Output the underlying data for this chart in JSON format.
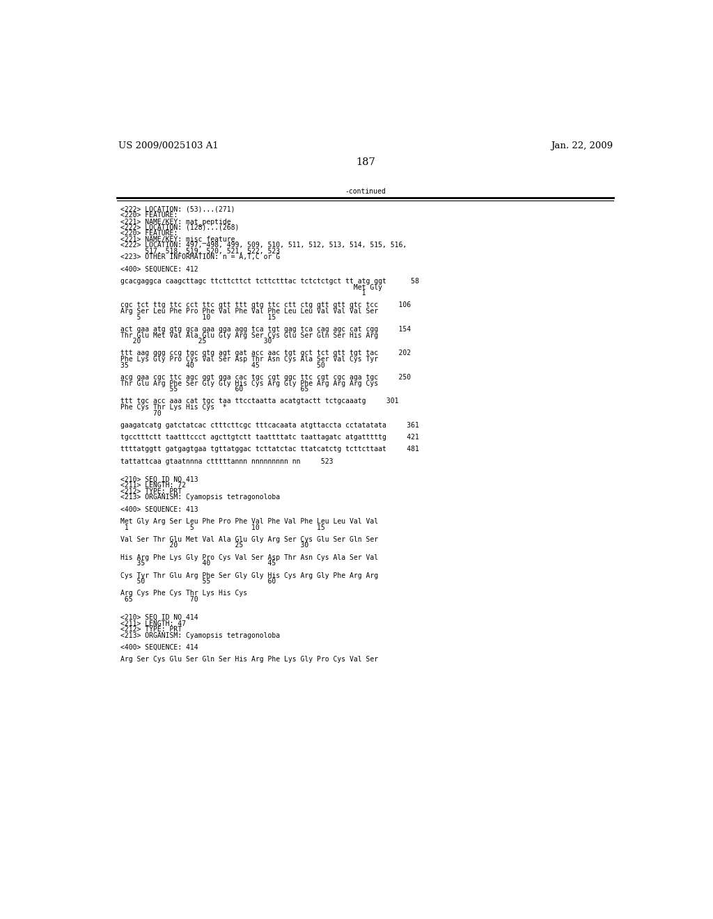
{
  "bg_color": "#ffffff",
  "top_left_text": "US 2009/0025103 A1",
  "top_right_text": "Jan. 22, 2009",
  "page_number": "187",
  "continued_text": "-continued",
  "font_size_header": 9.5,
  "font_size_mono": 7.0,
  "content_lines": [
    "<222> LOCATION: (53)...(271)",
    "<220> FEATURE:",
    "<221> NAME/KEY: mat_peptide",
    "<222> LOCATION: (128)...(268)",
    "<220> FEATURE:",
    "<221> NAME/KEY: misc_feature",
    "<222> LOCATION: 497, 498, 499, 509, 510, 511, 512, 513, 514, 515, 516,",
    "      517, 518, 519, 520, 521, 522, 523",
    "<223> OTHER INFORMATION: n = A,T,C or G",
    "",
    "<400> SEQUENCE: 412",
    "",
    "gcacgaggca caagcttagc ttcttcttct tcttctttac tctctctgct tt atg ggt      58",
    "                                                         Met Gly",
    "                                                           1",
    "",
    "cgc tct ttg ttc cct ttc gtt ttt gtg ttc ctt ctg gtt gtt gtc tcc     106",
    "Arg Ser Leu Phe Pro Phe Val Phe Val Phe Leu Leu Val Val Val Ser",
    "    5               10              15",
    "",
    "act gaa atg gtg gca gaa gga agg tca tgt gag tca cag agc cat cgg     154",
    "Thr Glu Met Val Ala Glu Gly Arg Ser Cys Glu Ser Gln Ser His Arg",
    "   20              25              30",
    "",
    "ttt aag ggg ccg tgc gtg agt gat acc aac tgt gct tct gtt tgt tac     202",
    "Phe Lys Gly Pro Cys Val Ser Asp Thr Asn Cys Ala Ser Val Cys Tyr",
    "35              40              45              50",
    "",
    "acg gaa cgc ttc agc ggt gga cac tgc cgt ggc ttc cgt cgc aga tgc     250",
    "Thr Glu Arg Phe Ser Gly Gly His Cys Arg Gly Phe Arg Arg Arg Cys",
    "            55              60              65",
    "",
    "ttt tgc acc aaa cat tgc taa ttcctaatta acatgtactt tctgcaaatg     301",
    "Phe Cys Thr Lys His Cys  *",
    "        70",
    "",
    "gaagatcatg gatctatcac ctttcttcgc tttcacaata atgttaccta cctatatata     361",
    "",
    "tgcctttctt taatttccct agcttgtctt taattttatc taattagatc atgatttttg     421",
    "",
    "ttttatggtt gatgagtgaa tgttatggac tcttatctac ttatcatctg tcttcttaat     481",
    "",
    "tattattcaa gtaatnnna ctttttannn nnnnnnnnn nn     523",
    "",
    "",
    "<210> SEQ ID NO 413",
    "<211> LENGTH: 72",
    "<212> TYPE: PRT",
    "<213> ORGANISM: Cyamopsis tetragonoloba",
    "",
    "<400> SEQUENCE: 413",
    "",
    "Met Gly Arg Ser Leu Phe Pro Phe Val Phe Val Phe Leu Leu Val Val",
    " 1               5              10              15",
    "",
    "Val Ser Thr Glu Met Val Ala Glu Gly Arg Ser Cys Glu Ser Gln Ser",
    "            20              25              30",
    "",
    "His Arg Phe Lys Gly Pro Cys Val Ser Asp Thr Asn Cys Ala Ser Val",
    "    35              40              45",
    "",
    "Cys Tyr Thr Glu Arg Phe Ser Gly Gly His Cys Arg Gly Phe Arg Arg",
    "    50              55              60",
    "",
    "Arg Cys Phe Cys Thr Lys His Cys",
    " 65              70",
    "",
    "",
    "<210> SEQ ID NO 414",
    "<211> LENGTH: 47",
    "<212> TYPE: PRT",
    "<213> ORGANISM: Cyamopsis tetragonoloba",
    "",
    "<400> SEQUENCE: 414",
    "",
    "Arg Ser Cys Glu Ser Gln Ser His Arg Phe Lys Gly Pro Cys Val Ser"
  ]
}
